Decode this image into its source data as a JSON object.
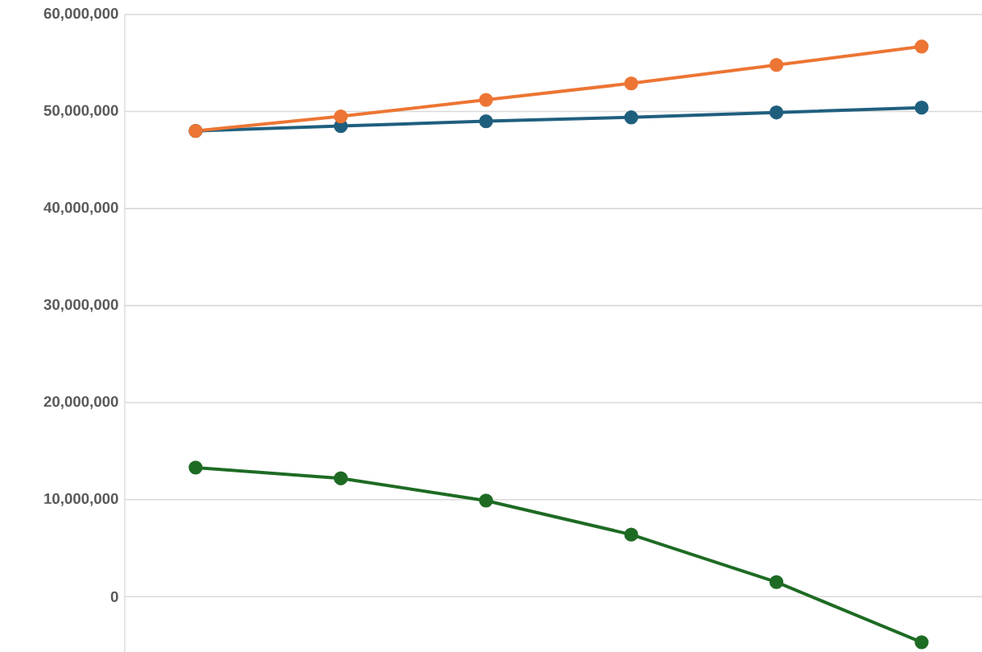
{
  "chart_data": {
    "type": "line",
    "categories": [
      null,
      null,
      null,
      null,
      null,
      null
    ],
    "series": [
      {
        "color": "#1f5f7e",
        "values": [
          48000000,
          48500000,
          49000000,
          49400000,
          49900000,
          50400000
        ]
      },
      {
        "color": "#ed7534",
        "values": [
          48000000,
          49500000,
          51200000,
          52900000,
          54800000,
          56700000
        ]
      },
      {
        "color": "#1e6b24",
        "values": [
          13300000,
          12200000,
          9900000,
          6400000,
          1500000,
          -4700000
        ]
      }
    ],
    "ylim": [
      -5700000,
      60000000
    ],
    "yticks": [
      {
        "value": 0,
        "label": "0"
      },
      {
        "value": 10000000,
        "label": "10,000,000"
      },
      {
        "value": 20000000,
        "label": "20,000,000"
      },
      {
        "value": 30000000,
        "label": "30,000,000"
      },
      {
        "value": 40000000,
        "label": "40,000,000"
      },
      {
        "value": 50000000,
        "label": "50,000,000"
      },
      {
        "value": 60000000,
        "label": "60,000,000"
      }
    ],
    "grid": "y",
    "marker": "circle",
    "line_style": "solid",
    "tick_labels": "y"
  }
}
